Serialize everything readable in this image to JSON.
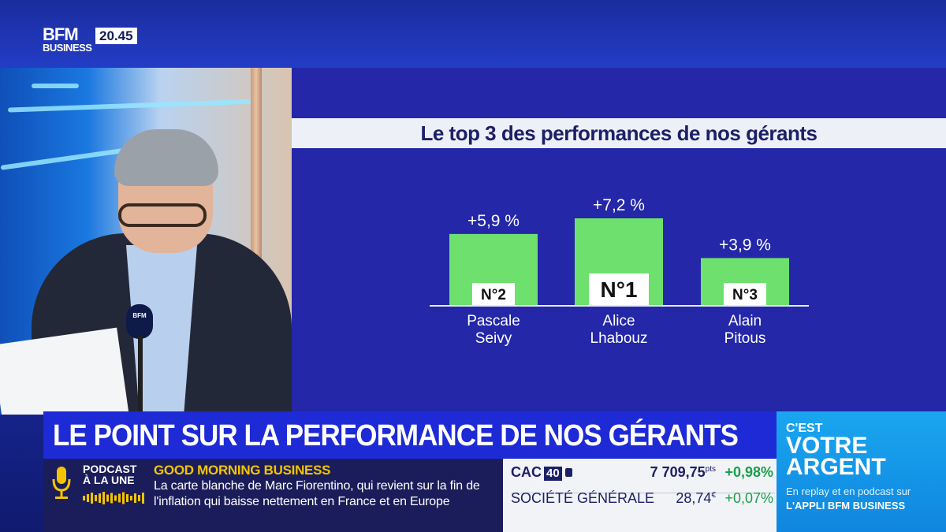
{
  "logo": {
    "brand": "BFM",
    "sub": "BUSINESS"
  },
  "clock": "20.45",
  "mic_label": "BFM",
  "chart_data": {
    "type": "bar",
    "title": "Le top 3 des performances de nos gérants",
    "categories": [
      "Pascale Seivy",
      "Alice Lhabouz",
      "Alain Pitous"
    ],
    "name_lines": [
      [
        "Pascale",
        "Seivy"
      ],
      [
        "Alice",
        "Lhabouz"
      ],
      [
        "Alain",
        "Pitous"
      ]
    ],
    "values": [
      5.9,
      7.2,
      3.9
    ],
    "value_labels": [
      "+5,9 %",
      "+7,2 %",
      "+3,9 %"
    ],
    "rank_labels": [
      "N°2",
      "N°1",
      "N°3"
    ],
    "ylim": [
      0,
      7.2
    ],
    "bar_color": "#6ee06e",
    "grid": false
  },
  "headline": "LE POINT SUR LA PERFORMANCE DE NOS GÉRANTS",
  "ticker": {
    "podcast_label_1": "PODCAST",
    "podcast_label_2": "À LA UNE",
    "show_name": "GOOD MORNING BUSINESS",
    "news_line_1": "La carte blanche de Marc Fiorentino, qui revient sur la fin de",
    "news_line_2": "l'inflation qui baisse nettement en France et en Europe"
  },
  "market": {
    "rows": [
      {
        "name": "CAC",
        "badge": "40",
        "value": "7 709,75",
        "unit": "pts",
        "change": "+0,98%"
      },
      {
        "name": "SOCIÉTÉ GÉNÉRALE",
        "badge": "",
        "value": "28,74",
        "unit": "€",
        "change": "+0,07%"
      }
    ],
    "positive_color": "#19a04a"
  },
  "promo": {
    "line1": "C'EST",
    "line2": "VOTRE",
    "line3": "ARGENT",
    "line4": "En replay et en podcast sur",
    "line5": "L'APPLI BFM BUSINESS"
  }
}
